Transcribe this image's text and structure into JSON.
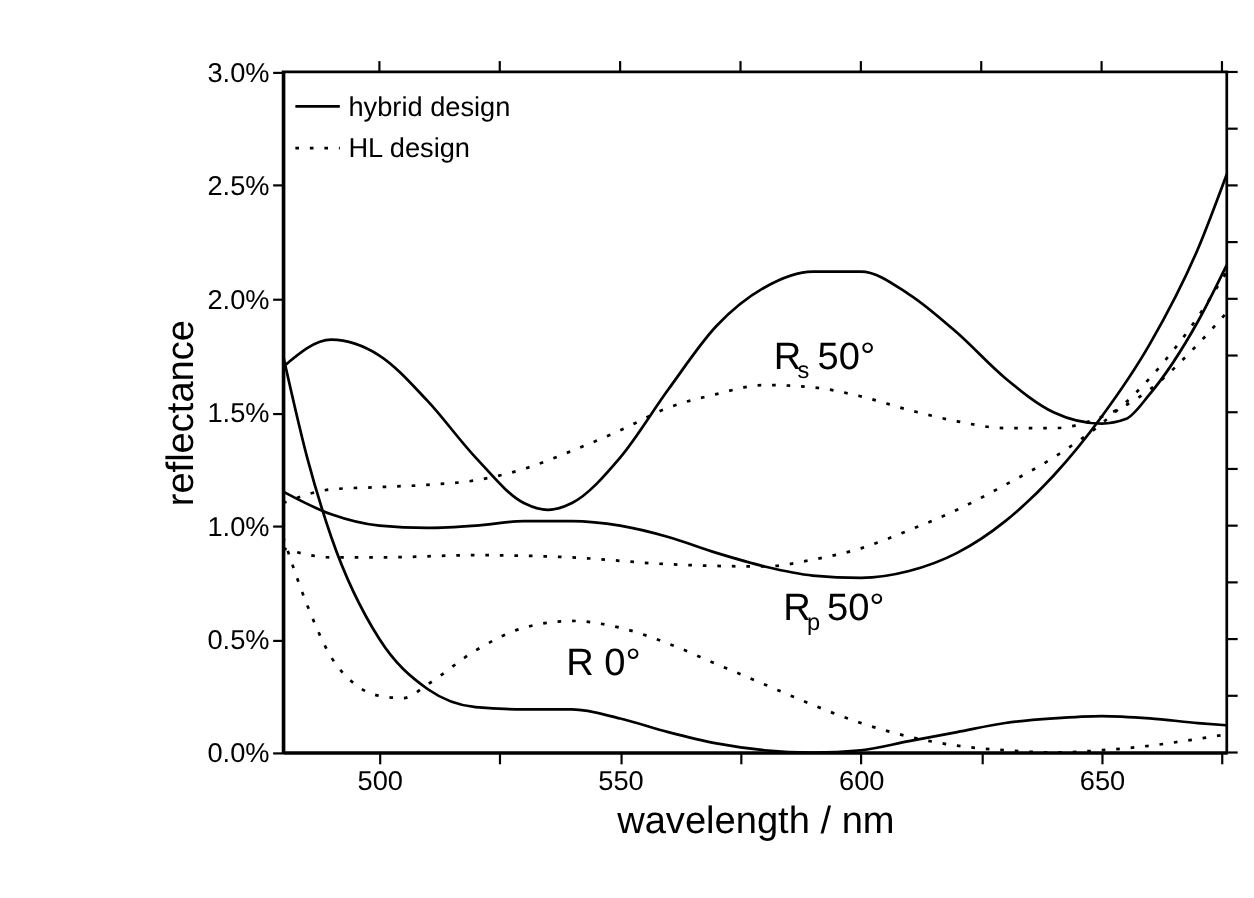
{
  "chart_data": {
    "type": "line",
    "xlabel": "wavelength / nm",
    "ylabel": "reflectance",
    "xlim": [
      480,
      676
    ],
    "ylim": [
      0,
      3.0
    ],
    "xticks": [
      {
        "value": 500,
        "label": "500"
      },
      {
        "value": 525,
        "label": null
      },
      {
        "value": 550,
        "label": "550"
      },
      {
        "value": 575,
        "label": null
      },
      {
        "value": 600,
        "label": "600"
      },
      {
        "value": 625,
        "label": null
      },
      {
        "value": 650,
        "label": "650"
      },
      {
        "value": 675,
        "label": null
      }
    ],
    "yticks": [
      {
        "value": 0,
        "label": "0.0%"
      },
      {
        "value": 0.25,
        "label": null
      },
      {
        "value": 0.5,
        "label": "0.5%"
      },
      {
        "value": 0.75,
        "label": null
      },
      {
        "value": 1.0,
        "label": "1.0%"
      },
      {
        "value": 1.25,
        "label": null
      },
      {
        "value": 1.5,
        "label": "1.5%"
      },
      {
        "value": 1.75,
        "label": null
      },
      {
        "value": 2.0,
        "label": "2.0%"
      },
      {
        "value": 2.25,
        "label": null
      },
      {
        "value": 2.5,
        "label": "2.5%"
      },
      {
        "value": 2.75,
        "label": null
      },
      {
        "value": 3.0,
        "label": "3.0%"
      }
    ],
    "grid": false,
    "legend": "top left",
    "marker": "none",
    "series": [
      {
        "name": "hybrid design",
        "color": "#000000",
        "line_style": "solid",
        "x": [
          480,
          490,
          500,
          510,
          520,
          530,
          535,
          540,
          550,
          560,
          570,
          580,
          590,
          600,
          610,
          620,
          630,
          640,
          650,
          655,
          660,
          670,
          676
        ],
        "values": [
          1.7,
          1.82,
          1.75,
          1.55,
          1.3,
          1.1,
          1.07,
          1.1,
          1.3,
          1.6,
          1.88,
          2.05,
          2.12,
          2.12,
          2.02,
          1.85,
          1.65,
          1.5,
          1.45,
          1.47,
          1.58,
          1.9,
          2.15
        ]
      },
      {
        "color": "#000000",
        "line_style": "solid",
        "x": [
          480,
          490,
          500,
          510,
          520,
          530,
          540,
          550,
          560,
          570,
          580,
          590,
          600,
          610,
          620,
          630,
          640,
          650,
          660,
          670,
          676
        ],
        "values": [
          1.15,
          1.05,
          1.0,
          0.99,
          1.0,
          1.02,
          1.02,
          1.0,
          0.95,
          0.88,
          0.82,
          0.78,
          0.77,
          0.8,
          0.88,
          1.02,
          1.22,
          1.48,
          1.8,
          2.22,
          2.55
        ]
      },
      {
        "color": "#000000",
        "line_style": "solid",
        "x": [
          480,
          485,
          490,
          500,
          510,
          520,
          530,
          540,
          550,
          560,
          570,
          580,
          590,
          600,
          610,
          620,
          630,
          640,
          650,
          660,
          670,
          676
        ],
        "values": [
          1.75,
          1.3,
          0.95,
          0.5,
          0.28,
          0.2,
          0.19,
          0.19,
          0.15,
          0.09,
          0.04,
          0.01,
          0.0,
          0.01,
          0.05,
          0.09,
          0.13,
          0.15,
          0.16,
          0.15,
          0.13,
          0.12
        ]
      },
      {
        "name": "HL design",
        "color": "#000000",
        "line_style": "dotted",
        "x": [
          480,
          490,
          500,
          510,
          520,
          530,
          540,
          550,
          560,
          570,
          580,
          590,
          600,
          610,
          620,
          630,
          640,
          650,
          660,
          670,
          676
        ],
        "values": [
          1.1,
          1.16,
          1.17,
          1.18,
          1.2,
          1.25,
          1.33,
          1.42,
          1.52,
          1.58,
          1.62,
          1.61,
          1.57,
          1.51,
          1.46,
          1.43,
          1.43,
          1.48,
          1.6,
          1.8,
          1.94
        ]
      },
      {
        "color": "#000000",
        "line_style": "dotted",
        "x": [
          480,
          490,
          500,
          520,
          540,
          560,
          580,
          590,
          600,
          610,
          620,
          630,
          640,
          650,
          660,
          670,
          676
        ],
        "values": [
          0.9,
          0.86,
          0.86,
          0.87,
          0.86,
          0.83,
          0.82,
          0.85,
          0.9,
          0.98,
          1.07,
          1.18,
          1.3,
          1.45,
          1.65,
          1.92,
          2.12
        ]
      },
      {
        "color": "#000000",
        "line_style": "dotted",
        "x": [
          480,
          485,
          490,
          495,
          500,
          505,
          510,
          520,
          530,
          540,
          550,
          560,
          570,
          580,
          590,
          600,
          610,
          620,
          630,
          640,
          650,
          660,
          670,
          676
        ],
        "values": [
          0.95,
          0.65,
          0.42,
          0.3,
          0.25,
          0.24,
          0.3,
          0.45,
          0.55,
          0.58,
          0.55,
          0.48,
          0.39,
          0.3,
          0.21,
          0.13,
          0.07,
          0.03,
          0.01,
          0.0,
          0.01,
          0.03,
          0.06,
          0.08
        ]
      }
    ],
    "annotations": [
      "R$_{s}$ 50°",
      "R$_{p}$ 50°",
      "R 0°"
    ]
  }
}
